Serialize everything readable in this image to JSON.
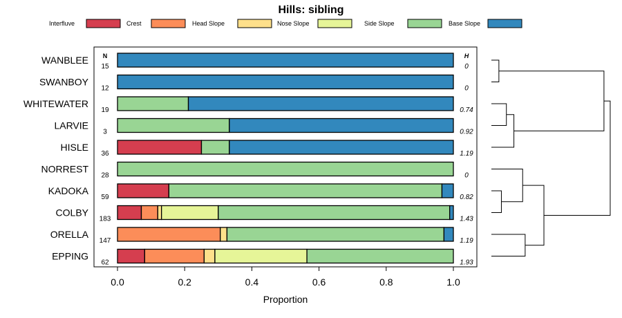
{
  "chart_data": {
    "type": "bar",
    "orientation": "horizontal",
    "stacked": true,
    "title": "Hills: sibling",
    "xlabel": "Proportion",
    "ylabel": "",
    "xlim": [
      0,
      1
    ],
    "x_ticks": [
      "0.0",
      "0.2",
      "0.4",
      "0.6",
      "0.8",
      "1.0"
    ],
    "x_tick_values": [
      0,
      0.2,
      0.4,
      0.6,
      0.8,
      1.0
    ],
    "n_header": "N",
    "h_header": "H",
    "legend_position": "top",
    "legend": [
      {
        "name": "Interfluve",
        "color": "#D53E4F"
      },
      {
        "name": "Crest",
        "color": "#FC8D59"
      },
      {
        "name": "Head Slope",
        "color": "#FEE08B"
      },
      {
        "name": "Nose Slope",
        "color": "#E6F598"
      },
      {
        "name": "Side Slope",
        "color": "#99D594"
      },
      {
        "name": "Base Slope",
        "color": "#3288BD"
      }
    ],
    "categories": [
      "WANBLEE",
      "SWANBOY",
      "WHITEWATER",
      "LARVIE",
      "HISLE",
      "NORREST",
      "KADOKA",
      "COLBY",
      "ORELLA",
      "EPPING"
    ],
    "n": [
      "15",
      "12",
      "19",
      "3",
      "36",
      "28",
      "59",
      "183",
      "147",
      "62"
    ],
    "h": [
      "0",
      "0",
      "0.74",
      "0.92",
      "1.19",
      "0",
      "0.82",
      "1.43",
      "1.19",
      "1.93"
    ],
    "series": [
      {
        "name": "Interfluve",
        "values": [
          0,
          0,
          0,
          0,
          0.25,
          0,
          0.153,
          0.071,
          0,
          0.081
        ]
      },
      {
        "name": "Crest",
        "values": [
          0,
          0,
          0,
          0,
          0,
          0,
          0,
          0.049,
          0.306,
          0.177
        ]
      },
      {
        "name": "Head Slope",
        "values": [
          0,
          0,
          0,
          0,
          0,
          0,
          0,
          0.011,
          0.02,
          0.032
        ]
      },
      {
        "name": "Nose Slope",
        "values": [
          0,
          0,
          0,
          0,
          0,
          0,
          0,
          0.169,
          0,
          0.274
        ]
      },
      {
        "name": "Side Slope",
        "values": [
          0,
          0,
          0.211,
          0.333,
          0.083,
          1,
          0.813,
          0.689,
          0.646,
          0.436
        ]
      },
      {
        "name": "Base Slope",
        "values": [
          1,
          1,
          0.789,
          0.667,
          0.667,
          0,
          0.034,
          0.011,
          0.028,
          0
        ]
      }
    ],
    "dendrogram": {
      "leaves": [
        "WANBLEE",
        "SWANBOY",
        "WHITEWATER",
        "LARVIE",
        "HISLE",
        "NORREST",
        "KADOKA",
        "COLBY",
        "ORELLA",
        "EPPING"
      ],
      "merges": [
        {
          "a": 0,
          "b": 1,
          "height": 0.06
        },
        {
          "a": 2,
          "b": 3,
          "height": 0.12
        },
        {
          "a": 11,
          "b": 4,
          "height": 0.18
        },
        {
          "a": 10,
          "b": 12,
          "height": 0.9
        },
        {
          "a": 6,
          "b": 7,
          "height": 0.08
        },
        {
          "a": 5,
          "b": 14,
          "height": 0.25
        },
        {
          "a": 8,
          "b": 9,
          "height": 0.27
        },
        {
          "a": 15,
          "b": 16,
          "height": 0.42
        },
        {
          "a": 13,
          "b": 17,
          "height": 0.95
        }
      ]
    }
  }
}
